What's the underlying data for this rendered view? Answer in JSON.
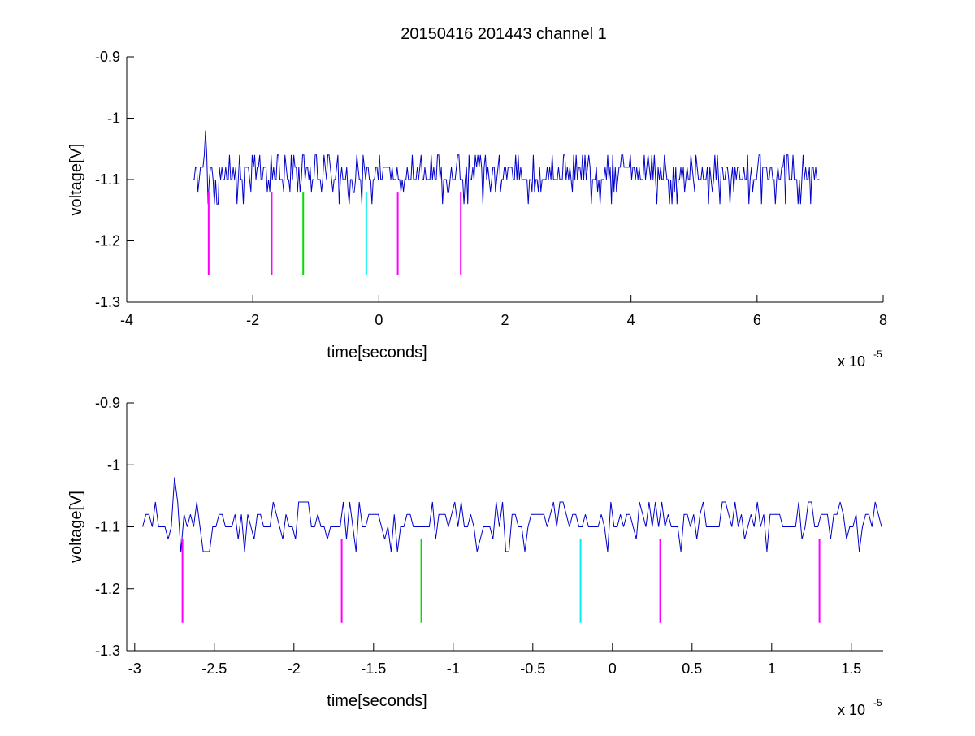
{
  "figure": {
    "title": "20150416 201443 channel 1"
  },
  "chart_data": [
    {
      "type": "line",
      "xlabel": "time[seconds]",
      "ylabel": "voltage[V]",
      "x_multiplier": "x 10",
      "x_multiplier_exp": "-5",
      "xlim": [
        -4,
        8
      ],
      "ylim": [
        -1.3,
        -0.9
      ],
      "x_ticks": [
        -4,
        -2,
        0,
        2,
        4,
        6,
        8
      ],
      "x_tick_labels": [
        "-4",
        "-2",
        "0",
        "2",
        "4",
        "6",
        "8"
      ],
      "y_ticks": [
        -1.3,
        -1.2,
        -1.1,
        -1.0,
        -0.9
      ],
      "y_tick_labels": [
        "-1.3",
        "-1.2",
        "-1.1",
        "-1",
        "-0.9"
      ],
      "grid": false,
      "series": [
        {
          "color": "#0000cc",
          "x_range": [
            -2.95,
            7.0
          ],
          "baseline": -1.1,
          "levels": [
            -1.14,
            -1.12,
            -1.1,
            -1.08,
            -1.06
          ],
          "spike": {
            "x": -2.75,
            "y": -1.02
          }
        }
      ],
      "markers": [
        {
          "x": -2.7,
          "color": "#ff00ff",
          "y_top": -1.12,
          "y_bottom": -1.255
        },
        {
          "x": -1.7,
          "color": "#ff00ff",
          "y_top": -1.12,
          "y_bottom": -1.255
        },
        {
          "x": -1.2,
          "color": "#00dd00",
          "y_top": -1.12,
          "y_bottom": -1.255
        },
        {
          "x": -0.2,
          "color": "#00eeee",
          "y_top": -1.12,
          "y_bottom": -1.255
        },
        {
          "x": 0.3,
          "color": "#ff00ff",
          "y_top": -1.12,
          "y_bottom": -1.255
        },
        {
          "x": 1.3,
          "color": "#ff00ff",
          "y_top": -1.12,
          "y_bottom": -1.255
        }
      ]
    },
    {
      "type": "line",
      "xlabel": "time[seconds]",
      "ylabel": "voltage[V]",
      "x_multiplier": "x 10",
      "x_multiplier_exp": "-5",
      "xlim": [
        -3.05,
        1.7
      ],
      "ylim": [
        -1.3,
        -0.9
      ],
      "x_ticks": [
        -3,
        -2.5,
        -2,
        -1.5,
        -1,
        -0.5,
        0,
        0.5,
        1,
        1.5
      ],
      "x_tick_labels": [
        "-3",
        "-2.5",
        "-2",
        "-1.5",
        "-1",
        "-0.5",
        "0",
        "0.5",
        "1",
        "1.5"
      ],
      "y_ticks": [
        -1.3,
        -1.2,
        -1.1,
        -1.0,
        -0.9
      ],
      "y_tick_labels": [
        "-1.3",
        "-1.2",
        "-1.1",
        "-1",
        "-0.9"
      ],
      "grid": false,
      "series": [
        {
          "color": "#0000cc",
          "x_range": [
            -2.95,
            1.7
          ],
          "baseline": -1.1,
          "levels": [
            -1.14,
            -1.12,
            -1.1,
            -1.08,
            -1.06
          ],
          "spike": {
            "x": -2.75,
            "y": -1.02
          }
        }
      ],
      "markers": [
        {
          "x": -2.7,
          "color": "#ff00ff",
          "y_top": -1.12,
          "y_bottom": -1.255
        },
        {
          "x": -1.7,
          "color": "#ff00ff",
          "y_top": -1.12,
          "y_bottom": -1.255
        },
        {
          "x": -1.2,
          "color": "#00dd00",
          "y_top": -1.12,
          "y_bottom": -1.255
        },
        {
          "x": -0.2,
          "color": "#00eeee",
          "y_top": -1.12,
          "y_bottom": -1.255
        },
        {
          "x": 0.3,
          "color": "#ff00ff",
          "y_top": -1.12,
          "y_bottom": -1.255
        },
        {
          "x": 1.3,
          "color": "#ff00ff",
          "y_top": -1.12,
          "y_bottom": -1.255
        }
      ]
    }
  ]
}
